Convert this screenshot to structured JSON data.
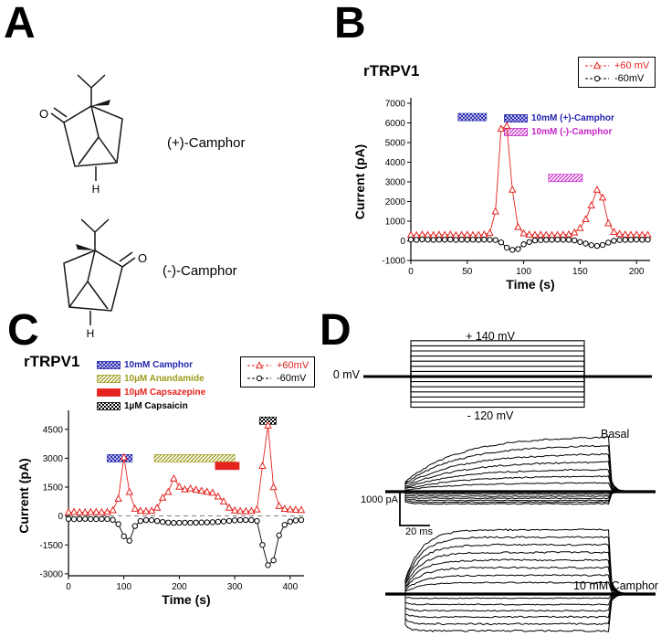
{
  "figure": {
    "background": "#ffffff"
  },
  "panelA": {
    "letter": "A",
    "structures": [
      {
        "label": "(+)-Camphor",
        "atom_o": "O",
        "atom_h": "H"
      },
      {
        "label": "(-)-Camphor",
        "atom_o": "O",
        "atom_h": "H"
      }
    ]
  },
  "panelB": {
    "letter": "B",
    "title": "rTRPV1",
    "series_legend": [
      {
        "label": "+60 mV",
        "marker": "triangle",
        "color": "#e4231f"
      },
      {
        "label": "-60mV",
        "marker": "circle",
        "color": "#000000"
      }
    ],
    "bar_legend": [
      {
        "label": "10mM (+)-Camphor",
        "color": "#2323af",
        "pattern": "crosshatch"
      },
      {
        "label": "10mM (-)-Camphor",
        "color": "#c827c8",
        "pattern": "hatch"
      }
    ]
  },
  "panelC": {
    "letter": "C",
    "title": "rTRPV1",
    "series_legend": [
      {
        "label": "+60mV",
        "marker": "triangle",
        "color": "#e4231f"
      },
      {
        "label": "-60mV",
        "marker": "circle",
        "color": "#000000"
      }
    ],
    "bar_legend": [
      {
        "label": "10mM Camphor",
        "color": "#2323af",
        "pattern": "crosshatch"
      },
      {
        "label": "10µM Anandamide",
        "color": "#9c9c1d",
        "pattern": "hatch"
      },
      {
        "label": "10µM Capsazepine",
        "color": "#e4231f",
        "pattern": "solid"
      },
      {
        "label": "1µM Capsaicin",
        "color": "#000000",
        "pattern": "checker"
      }
    ]
  },
  "panelD": {
    "letter": "D",
    "protocol": {
      "top_label": "+ 140 mV",
      "zero_label": "0 mV",
      "bottom_label": "- 120 mV",
      "v_max": 140,
      "v_min": -120,
      "v_step": 20
    },
    "scalebar": {
      "current": "1000 pA",
      "time": "20 ms"
    },
    "trace_sets": [
      {
        "label": "Basal",
        "amplitudes_pA": [
          1600,
          1350,
          1100,
          870,
          650,
          450,
          260,
          0,
          -70,
          -130,
          -190,
          -250,
          -300,
          -350
        ]
      },
      {
        "label": "10 mM Camphor",
        "amplitudes_pA": [
          1850,
          1640,
          1420,
          1200,
          980,
          760,
          540,
          330,
          -120,
          -300,
          -480,
          -660,
          -860,
          -1060
        ]
      }
    ]
  },
  "chart_data": [
    {
      "panel": "B",
      "type": "scatter",
      "title": "rTRPV1",
      "xlabel": "Time (s)",
      "ylabel": "Current (pA)",
      "xlim": [
        0,
        212
      ],
      "ylim": [
        -1000,
        7000
      ],
      "xticks": [
        0,
        50,
        100,
        150,
        200
      ],
      "yticks": [
        -1000,
        0,
        1000,
        2000,
        3000,
        4000,
        5000,
        6000,
        7000
      ],
      "zero_dash": false,
      "stim_bars": [
        {
          "label": "10mM (+)-Camphor",
          "x0": 42,
          "x1": 67,
          "y": 6300,
          "pattern": "crosshatch",
          "color": "#2323af"
        },
        {
          "label": "10mM (-)-Camphor",
          "x0": 122,
          "x1": 152,
          "y": 3200,
          "pattern": "hatch",
          "color": "#c827c8"
        }
      ],
      "series": [
        {
          "name": "+60 mV",
          "marker": "triangle",
          "color": "#e4231f",
          "x": [
            0,
            5,
            10,
            15,
            20,
            25,
            30,
            35,
            40,
            45,
            50,
            55,
            60,
            65,
            70,
            75,
            80,
            85,
            90,
            95,
            100,
            105,
            110,
            115,
            120,
            125,
            130,
            135,
            140,
            145,
            150,
            155,
            160,
            165,
            170,
            175,
            180,
            185,
            190,
            195,
            200,
            205,
            210
          ],
          "y": [
            300,
            285,
            315,
            300,
            290,
            310,
            300,
            320,
            285,
            300,
            310,
            290,
            300,
            320,
            400,
            1500,
            5700,
            5850,
            2600,
            700,
            380,
            320,
            300,
            310,
            300,
            290,
            300,
            310,
            330,
            420,
            650,
            1100,
            1800,
            2600,
            2200,
            900,
            450,
            350,
            320,
            300,
            310,
            300,
            300
          ]
        },
        {
          "name": "-60mV",
          "marker": "circle",
          "color": "#000000",
          "x": [
            0,
            5,
            10,
            15,
            20,
            25,
            30,
            35,
            40,
            45,
            50,
            55,
            60,
            65,
            70,
            75,
            80,
            85,
            90,
            95,
            100,
            105,
            110,
            115,
            120,
            125,
            130,
            135,
            140,
            145,
            150,
            155,
            160,
            165,
            170,
            175,
            180,
            185,
            190,
            195,
            200,
            205,
            210
          ],
          "y": [
            60,
            50,
            70,
            60,
            50,
            60,
            55,
            65,
            50,
            60,
            55,
            60,
            50,
            60,
            55,
            40,
            -80,
            -350,
            -460,
            -420,
            -180,
            -60,
            20,
            40,
            50,
            55,
            60,
            55,
            50,
            20,
            -60,
            -140,
            -220,
            -260,
            -210,
            -90,
            0,
            40,
            50,
            55,
            60,
            55,
            60
          ]
        }
      ]
    },
    {
      "panel": "C",
      "type": "scatter",
      "title": "rTRPV1",
      "xlabel": "Time (s)",
      "ylabel": "Current (pA)",
      "xlim": [
        0,
        425
      ],
      "ylim": [
        -3100,
        5200
      ],
      "xticks": [
        0,
        100,
        200,
        300,
        400
      ],
      "yticks": [
        -3000,
        -1500,
        0,
        1500,
        3000,
        4500
      ],
      "zero_dash": true,
      "stim_bars": [
        {
          "label": "10mM Camphor",
          "x0": 70,
          "x1": 115,
          "y": 3000,
          "pattern": "crosshatch",
          "color": "#2323af"
        },
        {
          "label": "10µM Anandamide",
          "x0": 155,
          "x1": 300,
          "y": 3000,
          "pattern": "hatch",
          "color": "#9c9c1d"
        },
        {
          "label": "10µM Capsazepine",
          "x0": 265,
          "x1": 308,
          "y": 2600,
          "pattern": "solid",
          "color": "#e4231f"
        },
        {
          "label": "1µM Capsaicin",
          "x0": 345,
          "x1": 375,
          "y": 4950,
          "pattern": "checker",
          "color": "#000000"
        }
      ],
      "series": [
        {
          "name": "+60mV",
          "marker": "triangle",
          "color": "#e4231f",
          "x": [
            0,
            10,
            20,
            30,
            40,
            50,
            60,
            70,
            80,
            90,
            100,
            110,
            120,
            130,
            140,
            150,
            160,
            170,
            180,
            190,
            200,
            210,
            220,
            230,
            240,
            250,
            260,
            270,
            280,
            290,
            300,
            310,
            320,
            330,
            340,
            350,
            360,
            370,
            380,
            390,
            400,
            410,
            420
          ],
          "y": [
            200,
            210,
            200,
            195,
            205,
            210,
            200,
            210,
            300,
            900,
            3050,
            1250,
            380,
            270,
            250,
            270,
            430,
            950,
            1250,
            1950,
            1520,
            1380,
            1430,
            1360,
            1310,
            1260,
            1210,
            1010,
            760,
            430,
            290,
            260,
            250,
            265,
            340,
            2600,
            4700,
            1500,
            520,
            370,
            340,
            325,
            315
          ]
        },
        {
          "name": "-60mV",
          "marker": "circle",
          "color": "#000000",
          "x": [
            0,
            10,
            20,
            30,
            40,
            50,
            60,
            70,
            80,
            90,
            100,
            110,
            120,
            130,
            140,
            150,
            160,
            170,
            180,
            190,
            200,
            210,
            220,
            230,
            240,
            250,
            260,
            270,
            280,
            290,
            300,
            310,
            320,
            330,
            340,
            350,
            360,
            370,
            380,
            390,
            400,
            410,
            420
          ],
          "y": [
            -150,
            -160,
            -150,
            -145,
            -155,
            -160,
            -150,
            -155,
            -200,
            -420,
            -1050,
            -1280,
            -520,
            -260,
            -210,
            -215,
            -260,
            -310,
            -340,
            -360,
            -350,
            -345,
            -350,
            -340,
            -335,
            -330,
            -320,
            -300,
            -280,
            -250,
            -225,
            -210,
            -205,
            -210,
            -260,
            -1500,
            -2550,
            -2300,
            -1000,
            -460,
            -290,
            -230,
            -205
          ]
        }
      ]
    }
  ]
}
